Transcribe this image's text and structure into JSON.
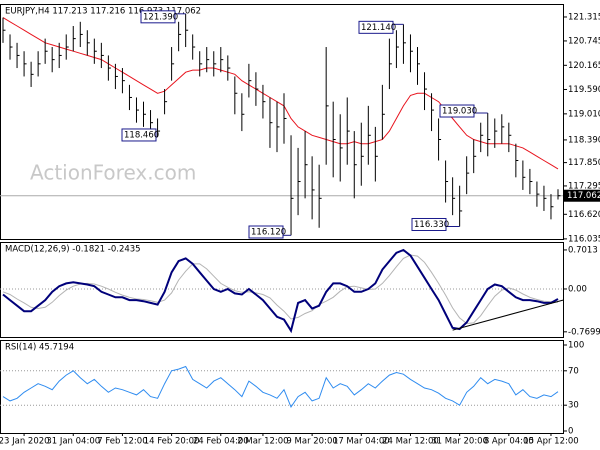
{
  "watermark": "ActionForex.com",
  "chart_data": [
    {
      "type": "ohlc",
      "label": "EURJPY,H4  117.213 117.216 116.973 117.062",
      "high": [
        121.3,
        120.9,
        120.7,
        120.5,
        120.25,
        120.5,
        120.8,
        120.6,
        120.7,
        120.9,
        121.1,
        121.2,
        121.0,
        120.8,
        120.7,
        120.4,
        120.2,
        120.1,
        119.7,
        119.4,
        119.3,
        119.1,
        118.9,
        119.6,
        120.6,
        121.2,
        121.39,
        120.9,
        120.5,
        120.6,
        120.5,
        120.6,
        120.4,
        119.9,
        119.5,
        120.2,
        120.0,
        119.7,
        119.4,
        119.3,
        119.5,
        118.5,
        118.2,
        118.6,
        118.0,
        117.8,
        120.6,
        119.3,
        119.0,
        119.4,
        118.6,
        118.8,
        119.2,
        118.7,
        119.7,
        120.8,
        121.0,
        121.14,
        120.9,
        120.6,
        120.0,
        119.5,
        118.9,
        117.9,
        117.5,
        117.3,
        118.0,
        118.4,
        118.8,
        119.03,
        118.9,
        119.0,
        118.8,
        118.3,
        117.9,
        117.7,
        117.4,
        117.3,
        117.1,
        117.216
      ],
      "low": [
        120.7,
        120.3,
        120.1,
        119.9,
        119.65,
        119.9,
        120.2,
        120.0,
        120.1,
        120.3,
        120.5,
        120.6,
        120.4,
        120.2,
        120.1,
        119.8,
        119.6,
        119.5,
        119.1,
        118.8,
        118.7,
        118.5,
        118.46,
        119.0,
        119.8,
        120.5,
        120.6,
        120.3,
        119.9,
        120.0,
        119.9,
        120.0,
        119.8,
        119.0,
        118.6,
        119.4,
        119.2,
        118.9,
        118.2,
        118.1,
        118.3,
        116.12,
        116.6,
        117.0,
        116.5,
        116.3,
        117.8,
        117.5,
        117.4,
        117.8,
        117.0,
        117.3,
        117.8,
        117.4,
        118.4,
        119.6,
        120.1,
        120.2,
        120.0,
        119.7,
        119.1,
        118.6,
        117.9,
        116.9,
        116.6,
        116.33,
        117.1,
        117.6,
        118.1,
        118.0,
        118.2,
        118.3,
        118.1,
        117.5,
        117.2,
        117.1,
        116.8,
        116.7,
        116.5,
        116.973
      ],
      "close": [
        121.0,
        120.6,
        120.4,
        120.2,
        119.95,
        120.2,
        120.5,
        120.3,
        120.4,
        120.6,
        120.8,
        120.9,
        120.7,
        120.5,
        120.4,
        120.1,
        119.9,
        119.8,
        119.4,
        119.1,
        119.0,
        118.8,
        118.6,
        119.3,
        120.2,
        120.9,
        121.0,
        120.6,
        120.2,
        120.3,
        120.2,
        120.3,
        120.1,
        119.5,
        119.0,
        119.8,
        119.6,
        119.3,
        118.8,
        118.7,
        118.9,
        117.0,
        117.4,
        117.8,
        117.2,
        117.0,
        119.2,
        118.4,
        118.2,
        118.6,
        117.8,
        118.0,
        118.5,
        118.0,
        119.0,
        120.2,
        120.6,
        120.7,
        120.5,
        120.2,
        119.6,
        119.1,
        118.4,
        117.4,
        117.0,
        116.7,
        117.6,
        118.0,
        118.5,
        118.4,
        118.6,
        118.7,
        118.5,
        117.9,
        117.5,
        117.4,
        117.1,
        117.0,
        116.8,
        117.062
      ],
      "ma": {
        "color": "#e8141e",
        "values": [
          121.3,
          121.2,
          121.1,
          121.0,
          120.9,
          120.8,
          120.7,
          120.65,
          120.6,
          120.55,
          120.5,
          120.45,
          120.4,
          120.35,
          120.3,
          120.2,
          120.1,
          120.0,
          119.9,
          119.8,
          119.7,
          119.6,
          119.5,
          119.55,
          119.7,
          119.85,
          120.0,
          120.05,
          120.05,
          120.1,
          120.1,
          120.05,
          120.0,
          119.95,
          119.8,
          119.7,
          119.6,
          119.5,
          119.4,
          119.3,
          119.2,
          118.9,
          118.7,
          118.6,
          118.5,
          118.45,
          118.4,
          118.35,
          118.3,
          118.3,
          118.35,
          118.3,
          118.3,
          118.35,
          118.4,
          118.6,
          118.9,
          119.2,
          119.45,
          119.5,
          119.5,
          119.4,
          119.3,
          119.1,
          118.9,
          118.7,
          118.5,
          118.4,
          118.35,
          118.3,
          118.3,
          118.3,
          118.3,
          118.25,
          118.2,
          118.1,
          118.0,
          117.9,
          117.8,
          117.7
        ]
      },
      "color": "#000000",
      "current_price": 117.062,
      "annotations": [
        {
          "value": 121.39,
          "label": "121.390"
        },
        {
          "value": 118.46,
          "label": "118.460"
        },
        {
          "value": 121.14,
          "label": "121.140"
        },
        {
          "value": 119.03,
          "label": "119.030"
        },
        {
          "value": 116.12,
          "label": "116.120"
        },
        {
          "value": 116.33,
          "label": "116.330"
        }
      ],
      "ylim": [
        116.08,
        121.6
      ],
      "yticks": [
        121.315,
        120.745,
        120.165,
        {
          "value": 119.59,
          "label": "119.590"
        },
        {
          "value": 119.01,
          "label": "119.010"
        },
        {
          "value": 118.39,
          "label": "118.390"
        },
        {
          "value": 117.85,
          "label": "117.850"
        },
        117.295,
        {
          "value": 116.62,
          "label": "116.620"
        },
        116.035
      ]
    },
    {
      "type": "line",
      "label": "MACD(12,26,9) -0.1821 -0.2435",
      "series": [
        {
          "color": "#00007a",
          "values": [
            -0.1,
            -0.2,
            -0.3,
            -0.4,
            -0.4,
            -0.3,
            -0.2,
            -0.05,
            0.05,
            0.1,
            0.12,
            0.1,
            0.08,
            0.05,
            -0.05,
            -0.1,
            -0.15,
            -0.15,
            -0.2,
            -0.2,
            -0.22,
            -0.25,
            -0.28,
            -0.05,
            0.3,
            0.5,
            0.55,
            0.45,
            0.3,
            0.15,
            0.0,
            -0.05,
            0.0,
            -0.08,
            -0.1,
            0.0,
            -0.1,
            -0.2,
            -0.35,
            -0.5,
            -0.55,
            -0.75,
            -0.25,
            -0.2,
            -0.35,
            -0.3,
            -0.05,
            0.1,
            0.1,
            0.05,
            -0.05,
            -0.05,
            0.0,
            0.1,
            0.35,
            0.5,
            0.65,
            0.7,
            0.6,
            0.4,
            0.2,
            0.0,
            -0.2,
            -0.45,
            -0.7,
            -0.72,
            -0.6,
            -0.4,
            -0.2,
            0.0,
            0.08,
            0.05,
            -0.05,
            -0.15,
            -0.2,
            -0.2,
            -0.22,
            -0.25,
            -0.25,
            -0.18
          ]
        },
        {
          "color": "#b4b4b4",
          "values": [
            -0.05,
            -0.1,
            -0.18,
            -0.25,
            -0.33,
            -0.35,
            -0.33,
            -0.24,
            -0.12,
            -0.02,
            0.05,
            0.09,
            0.1,
            0.09,
            0.05,
            0.0,
            -0.06,
            -0.11,
            -0.15,
            -0.18,
            -0.19,
            -0.21,
            -0.24,
            -0.2,
            -0.07,
            0.16,
            0.32,
            0.45,
            0.45,
            0.36,
            0.23,
            0.1,
            0.03,
            -0.03,
            -0.06,
            -0.05,
            -0.07,
            -0.1,
            -0.16,
            -0.29,
            -0.4,
            -0.54,
            -0.51,
            -0.44,
            -0.39,
            -0.28,
            -0.22,
            -0.15,
            -0.04,
            0.04,
            0.05,
            0.02,
            -0.01,
            0.0,
            0.1,
            0.24,
            0.4,
            0.55,
            0.61,
            0.59,
            0.48,
            0.3,
            0.1,
            -0.11,
            -0.34,
            -0.52,
            -0.62,
            -0.61,
            -0.48,
            -0.3,
            -0.13,
            -0.02,
            0.02,
            -0.02,
            -0.09,
            -0.15,
            -0.19,
            -0.22,
            -0.23,
            -0.24
          ]
        }
      ],
      "trendline": [
        -0.74,
        -0.2
      ],
      "ylim": [
        -0.845,
        0.826
      ],
      "yticks": [
        0.7013,
        {
          "value": 0,
          "label": "0.00"
        },
        -0.7699
      ]
    },
    {
      "type": "line",
      "label": "RSI(14) 45.7194",
      "series": [
        {
          "color": "#2f8cf0",
          "values": [
            40,
            35,
            38,
            45,
            50,
            55,
            52,
            48,
            58,
            65,
            70,
            62,
            55,
            60,
            52,
            45,
            50,
            48,
            45,
            42,
            48,
            40,
            38,
            55,
            70,
            72,
            75,
            60,
            55,
            50,
            58,
            62,
            55,
            48,
            40,
            58,
            52,
            45,
            42,
            38,
            48,
            28,
            40,
            45,
            35,
            38,
            62,
            50,
            55,
            52,
            42,
            48,
            55,
            50,
            58,
            65,
            68,
            66,
            60,
            55,
            50,
            48,
            44,
            38,
            35,
            30,
            45,
            52,
            62,
            55,
            60,
            58,
            55,
            42,
            48,
            40,
            38,
            42,
            40,
            45.72
          ]
        }
      ],
      "ylim": [
        0,
        100
      ],
      "yticks": [
        100,
        70,
        30,
        0
      ],
      "levels": [
        70,
        30
      ],
      "categories": [
        null,
        null,
        null,
        "23 Jan 2020",
        null,
        null,
        null,
        null,
        null,
        null,
        "31 Jan 04:00",
        null,
        null,
        null,
        null,
        null,
        null,
        "7 Feb 12:00",
        null,
        null,
        null,
        null,
        null,
        null,
        "14 Feb 20:00",
        null,
        null,
        null,
        null,
        null,
        null,
        "24 Feb 04:00",
        null,
        null,
        null,
        null,
        null,
        "2 Mar 12:00",
        null,
        null,
        null,
        null,
        null,
        null,
        "9 Mar 20:00",
        null,
        null,
        null,
        null,
        null,
        null,
        "17 Mar 04:00",
        null,
        null,
        null,
        null,
        null,
        null,
        "24 Mar 12:00",
        null,
        null,
        null,
        null,
        null,
        null,
        "31 Mar 20:00",
        null,
        null,
        null,
        null,
        null,
        null,
        "8 Apr 04:00",
        null,
        null,
        null,
        null,
        null,
        "15 Apr 12:00",
        null
      ]
    }
  ]
}
